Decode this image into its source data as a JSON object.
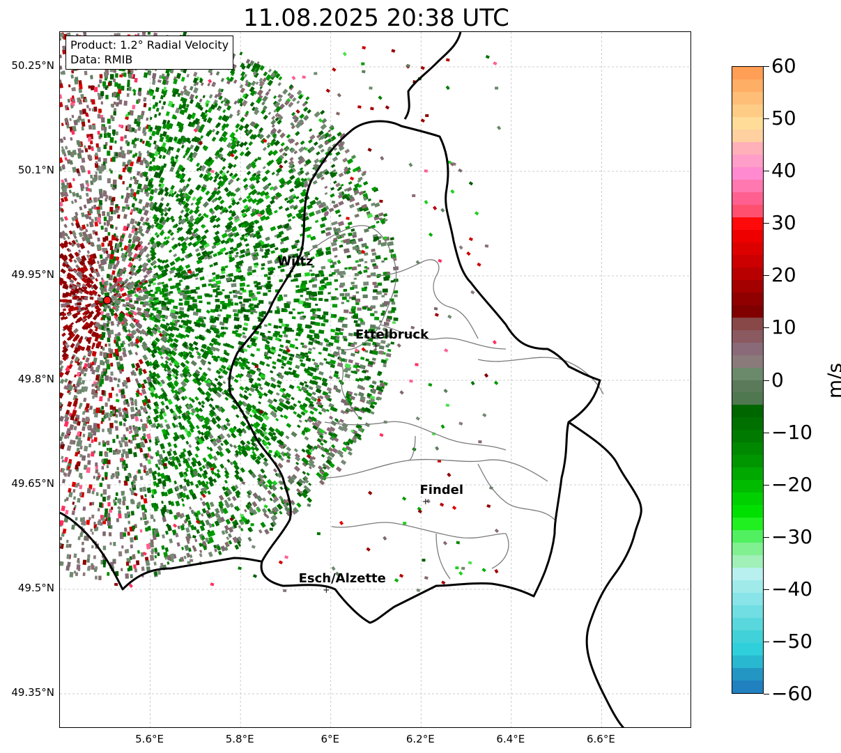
{
  "title": "11.08.2025 20:38 UTC",
  "info_box": {
    "product": "Product: 1.2° Radial Velocity",
    "data": "Data: RMIB"
  },
  "map": {
    "lon_range": [
      5.4,
      6.8
    ],
    "lat_range": [
      49.3,
      50.3
    ],
    "lat_ticks": [
      {
        "value": 50.25,
        "label": "50.25°N"
      },
      {
        "value": 50.1,
        "label": "50.1°N"
      },
      {
        "value": 49.95,
        "label": "49.95°N"
      },
      {
        "value": 49.8,
        "label": "49.8°N"
      },
      {
        "value": 49.65,
        "label": "49.65°N"
      },
      {
        "value": 49.5,
        "label": "49.5°N"
      },
      {
        "value": 49.35,
        "label": "49.35°N"
      }
    ],
    "lon_ticks": [
      {
        "value": 5.6,
        "label": "5.6°E"
      },
      {
        "value": 5.8,
        "label": "5.8°E"
      },
      {
        "value": 6.0,
        "label": "6°E"
      },
      {
        "value": 6.2,
        "label": "6.2°E"
      },
      {
        "value": 6.4,
        "label": "6.4°E"
      },
      {
        "value": 6.6,
        "label": "6.6°E"
      }
    ],
    "gridlines": true,
    "radar_site": {
      "lon": 5.505,
      "lat": 49.915
    },
    "cities": [
      {
        "name": "Wiltz",
        "lon": 5.94,
        "lat": 49.97,
        "marker": false
      },
      {
        "name": "Ettelbruck",
        "lon": 6.1,
        "lat": 49.85,
        "marker": true
      },
      {
        "name": "Findel",
        "lon": 6.21,
        "lat": 49.627,
        "marker": true
      },
      {
        "name": "Esch/Alzette",
        "lon": 5.99,
        "lat": 49.5,
        "marker": true
      }
    ]
  },
  "colorbar": {
    "unit": "m/s",
    "min": -60,
    "max": 60,
    "ticks": [
      {
        "value": 60,
        "label": "60"
      },
      {
        "value": 50,
        "label": "50"
      },
      {
        "value": 40,
        "label": "40"
      },
      {
        "value": 30,
        "label": "30"
      },
      {
        "value": 20,
        "label": "20"
      },
      {
        "value": 10,
        "label": "10"
      },
      {
        "value": 0,
        "label": "0"
      },
      {
        "value": -10,
        "label": "−10"
      },
      {
        "value": -20,
        "label": "−20"
      },
      {
        "value": -30,
        "label": "−30"
      },
      {
        "value": -40,
        "label": "−40"
      },
      {
        "value": -50,
        "label": "−50"
      },
      {
        "value": -60,
        "label": "−60"
      }
    ],
    "colors_top_to_bottom": [
      "#ff9e55",
      "#ffae66",
      "#ffbe77",
      "#ffcc85",
      "#ffdd99",
      "#ffd0a0",
      "#ffb0b8",
      "#ff9ec8",
      "#ff8ad0",
      "#ff78b0",
      "#ff6090",
      "#ff5070",
      "#ff0a0a",
      "#ee0000",
      "#dd0000",
      "#cc0000",
      "#b80000",
      "#a40000",
      "#900000",
      "#800000",
      "#884848",
      "#8a5a60",
      "#8a6a78",
      "#8a7a7a",
      "#6b8a6b",
      "#5a7a5a",
      "#507850",
      "#006600",
      "#007000",
      "#007a00",
      "#008800",
      "#009600",
      "#00a800",
      "#00bb00",
      "#00d000",
      "#00e000",
      "#20f020",
      "#50f060",
      "#80f090",
      "#a0f0b8",
      "#b8f0f0",
      "#a0eaea",
      "#88e4e8",
      "#70dee2",
      "#58d8dc",
      "#40d2d8",
      "#30cfdc",
      "#28b8d0",
      "#2496c4",
      "#2080c0"
    ]
  }
}
